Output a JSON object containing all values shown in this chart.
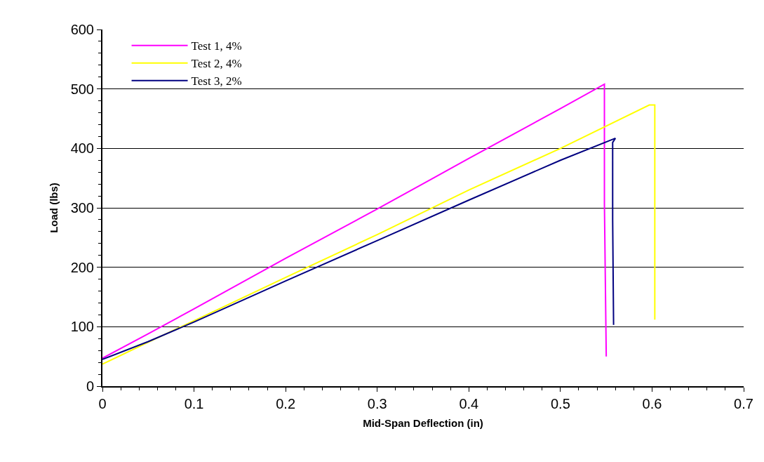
{
  "chart_data": {
    "type": "line",
    "xlabel": "Mid-Span Deflection (in)",
    "ylabel": "Load (lbs)",
    "xlim": [
      0,
      0.7
    ],
    "xticks": [
      0,
      0.1,
      0.2,
      0.3,
      0.4,
      0.5,
      0.6,
      0.7
    ],
    "ylim": [
      0,
      600
    ],
    "yticks": [
      0,
      100,
      200,
      300,
      400,
      500,
      600
    ],
    "grid": "y",
    "legend": "top left",
    "marker": "none",
    "line_style": "solid",
    "series": [
      {
        "name": "Test 1, 4%",
        "color": "#ff00ff",
        "x": [
          0,
          0.05,
          0.1,
          0.2,
          0.3,
          0.4,
          0.5,
          0.548,
          0.548,
          0.55
        ],
        "values": [
          47,
          88,
          130,
          215,
          298,
          383,
          467,
          508,
          307,
          50
        ]
      },
      {
        "name": "Test 2, 4%",
        "color": "#ffff00",
        "x": [
          0,
          0.05,
          0.1,
          0.2,
          0.3,
          0.4,
          0.5,
          0.597,
          0.603,
          0.603
        ],
        "values": [
          37,
          74,
          110,
          183,
          255,
          330,
          400,
          473,
          473,
          112
        ]
      },
      {
        "name": "Test 3, 2%",
        "color": "#000080",
        "x": [
          0,
          0.05,
          0.1,
          0.2,
          0.3,
          0.4,
          0.5,
          0.56,
          0.557,
          0.557,
          0.558
        ],
        "values": [
          45,
          75,
          108,
          177,
          245,
          313,
          380,
          417,
          410,
          280,
          103
        ]
      }
    ]
  }
}
